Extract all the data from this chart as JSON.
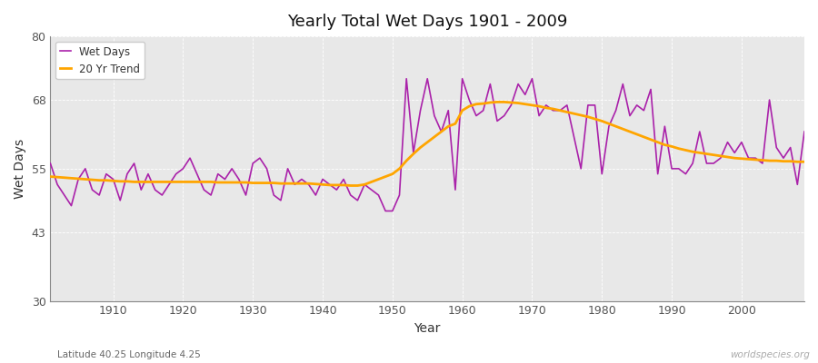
{
  "title": "Yearly Total Wet Days 1901 - 2009",
  "xlabel": "Year",
  "ylabel": "Wet Days",
  "footnote_left": "Latitude 40.25 Longitude 4.25",
  "footnote_right": "worldspecies.org",
  "ylim": [
    30,
    80
  ],
  "yticks": [
    30,
    43,
    55,
    68,
    80
  ],
  "xlim": [
    1901,
    2009
  ],
  "fig_bg_color": "#ffffff",
  "plot_bg_color": "#e8e8e8",
  "plot_bg_color2": "#d8d8d8",
  "wet_days_color": "#aa22aa",
  "trend_color": "#ffa500",
  "wet_days_label": "Wet Days",
  "trend_label": "20 Yr Trend",
  "years": [
    1901,
    1902,
    1903,
    1904,
    1905,
    1906,
    1907,
    1908,
    1909,
    1910,
    1911,
    1912,
    1913,
    1914,
    1915,
    1916,
    1917,
    1918,
    1919,
    1920,
    1921,
    1922,
    1923,
    1924,
    1925,
    1926,
    1927,
    1928,
    1929,
    1930,
    1931,
    1932,
    1933,
    1934,
    1935,
    1936,
    1937,
    1938,
    1939,
    1940,
    1941,
    1942,
    1943,
    1944,
    1945,
    1946,
    1947,
    1948,
    1949,
    1950,
    1951,
    1952,
    1953,
    1954,
    1955,
    1956,
    1957,
    1958,
    1959,
    1960,
    1961,
    1962,
    1963,
    1964,
    1965,
    1966,
    1967,
    1968,
    1969,
    1970,
    1971,
    1972,
    1973,
    1974,
    1975,
    1976,
    1977,
    1978,
    1979,
    1980,
    1981,
    1982,
    1983,
    1984,
    1985,
    1986,
    1987,
    1988,
    1989,
    1990,
    1991,
    1992,
    1993,
    1994,
    1995,
    1996,
    1997,
    1998,
    1999,
    2000,
    2001,
    2002,
    2003,
    2004,
    2005,
    2006,
    2007,
    2008,
    2009
  ],
  "wet_days": [
    56,
    52,
    50,
    48,
    53,
    55,
    51,
    50,
    54,
    53,
    49,
    54,
    56,
    51,
    54,
    51,
    50,
    52,
    54,
    55,
    57,
    54,
    51,
    50,
    54,
    53,
    55,
    53,
    50,
    56,
    57,
    55,
    50,
    49,
    55,
    52,
    53,
    52,
    50,
    53,
    52,
    51,
    53,
    50,
    49,
    52,
    51,
    50,
    47,
    47,
    50,
    72,
    58,
    66,
    72,
    65,
    62,
    66,
    51,
    72,
    68,
    65,
    66,
    71,
    64,
    65,
    67,
    71,
    69,
    72,
    65,
    67,
    66,
    66,
    67,
    61,
    55,
    67,
    67,
    54,
    63,
    66,
    71,
    65,
    67,
    66,
    70,
    54,
    63,
    55,
    55,
    54,
    56,
    62,
    56,
    56,
    57,
    60,
    58,
    60,
    57,
    57,
    56,
    68,
    59,
    57,
    59,
    52,
    62
  ],
  "trend": [
    53.5,
    53.4,
    53.3,
    53.2,
    53.1,
    53.0,
    52.9,
    52.8,
    52.8,
    52.7,
    52.6,
    52.6,
    52.5,
    52.5,
    52.5,
    52.5,
    52.5,
    52.5,
    52.5,
    52.5,
    52.5,
    52.5,
    52.5,
    52.5,
    52.4,
    52.4,
    52.4,
    52.4,
    52.4,
    52.3,
    52.3,
    52.3,
    52.3,
    52.2,
    52.2,
    52.2,
    52.2,
    52.2,
    52.1,
    52.0,
    51.9,
    51.9,
    51.9,
    51.8,
    51.8,
    52.0,
    52.5,
    53.0,
    53.5,
    54.0,
    55.0,
    56.5,
    57.8,
    59.0,
    60.0,
    61.0,
    62.0,
    63.0,
    63.5,
    66.0,
    66.8,
    67.2,
    67.3,
    67.5,
    67.6,
    67.6,
    67.5,
    67.4,
    67.2,
    67.0,
    66.8,
    66.5,
    66.3,
    66.0,
    65.7,
    65.4,
    65.1,
    64.8,
    64.4,
    64.0,
    63.5,
    63.0,
    62.5,
    62.0,
    61.5,
    61.0,
    60.5,
    60.0,
    59.5,
    59.2,
    58.8,
    58.5,
    58.2,
    58.0,
    57.8,
    57.6,
    57.4,
    57.2,
    57.0,
    56.9,
    56.8,
    56.7,
    56.6,
    56.5,
    56.5,
    56.4,
    56.4,
    56.3,
    56.3
  ]
}
